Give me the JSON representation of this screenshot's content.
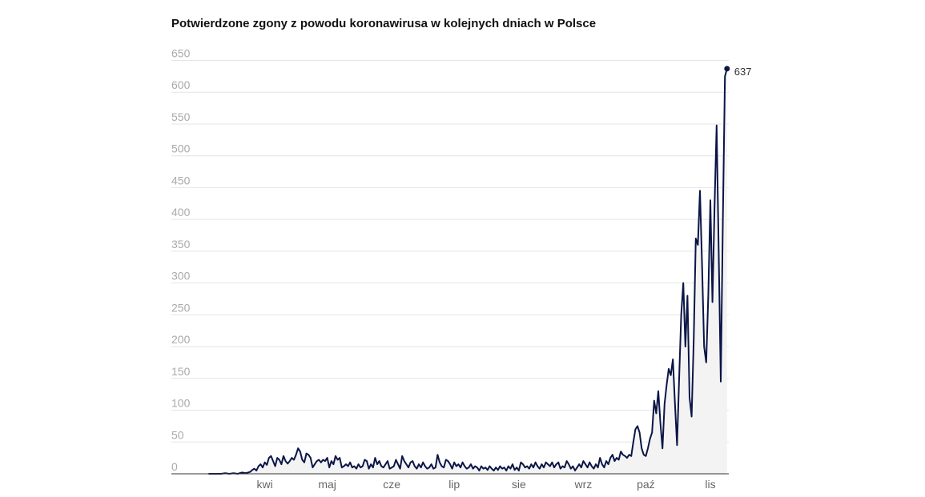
{
  "chart_data": {
    "type": "line",
    "title": "Potwierdzone zgony z powodu koronawirusa w kolejnych dniach w Polsce",
    "xlabel": "",
    "ylabel": "",
    "ylim": [
      0,
      650
    ],
    "yticks": [
      0,
      50,
      100,
      150,
      200,
      250,
      300,
      350,
      400,
      450,
      500,
      550,
      600,
      650
    ],
    "xtick_labels": [
      {
        "label": "kwi",
        "day": 31
      },
      {
        "label": "maj",
        "day": 61
      },
      {
        "label": "cze",
        "day": 92
      },
      {
        "label": "lip",
        "day": 122
      },
      {
        "label": "sie",
        "day": 153
      },
      {
        "label": "wrz",
        "day": 184
      },
      {
        "label": "paź",
        "day": 214
      },
      {
        "label": "lis",
        "day": 245
      }
    ],
    "end_label": "637",
    "grid": true,
    "line_color": "#0b1546",
    "fill_color": "#f3f3f3",
    "series": [
      {
        "points": [
          [
            4,
            0
          ],
          [
            10,
            0
          ],
          [
            12,
            1
          ],
          [
            14,
            0
          ],
          [
            16,
            1
          ],
          [
            18,
            0
          ],
          [
            20,
            2
          ],
          [
            22,
            1
          ],
          [
            24,
            3
          ],
          [
            25,
            6
          ],
          [
            26,
            8
          ],
          [
            27,
            5
          ],
          [
            28,
            12
          ],
          [
            29,
            15
          ],
          [
            30,
            10
          ],
          [
            31,
            18
          ],
          [
            32,
            14
          ],
          [
            33,
            25
          ],
          [
            34,
            28
          ],
          [
            35,
            20
          ],
          [
            36,
            12
          ],
          [
            37,
            25
          ],
          [
            38,
            22
          ],
          [
            39,
            15
          ],
          [
            40,
            28
          ],
          [
            41,
            20
          ],
          [
            42,
            16
          ],
          [
            43,
            20
          ],
          [
            44,
            25
          ],
          [
            45,
            22
          ],
          [
            46,
            30
          ],
          [
            47,
            40
          ],
          [
            48,
            35
          ],
          [
            49,
            22
          ],
          [
            50,
            18
          ],
          [
            51,
            32
          ],
          [
            52,
            30
          ],
          [
            53,
            25
          ],
          [
            54,
            10
          ],
          [
            55,
            15
          ],
          [
            56,
            20
          ],
          [
            57,
            22
          ],
          [
            58,
            18
          ],
          [
            59,
            22
          ],
          [
            60,
            20
          ],
          [
            61,
            25
          ],
          [
            62,
            10
          ],
          [
            63,
            20
          ],
          [
            64,
            15
          ],
          [
            65,
            28
          ],
          [
            66,
            22
          ],
          [
            67,
            25
          ],
          [
            68,
            10
          ],
          [
            69,
            12
          ],
          [
            70,
            15
          ],
          [
            71,
            12
          ],
          [
            72,
            18
          ],
          [
            73,
            10
          ],
          [
            74,
            12
          ],
          [
            75,
            8
          ],
          [
            76,
            15
          ],
          [
            77,
            10
          ],
          [
            78,
            12
          ],
          [
            79,
            22
          ],
          [
            80,
            20
          ],
          [
            81,
            8
          ],
          [
            82,
            15
          ],
          [
            83,
            10
          ],
          [
            84,
            25
          ],
          [
            85,
            15
          ],
          [
            86,
            20
          ],
          [
            87,
            12
          ],
          [
            88,
            10
          ],
          [
            89,
            15
          ],
          [
            90,
            20
          ],
          [
            91,
            8
          ],
          [
            92,
            10
          ],
          [
            93,
            12
          ],
          [
            94,
            22
          ],
          [
            95,
            15
          ],
          [
            96,
            8
          ],
          [
            97,
            28
          ],
          [
            98,
            20
          ],
          [
            99,
            15
          ],
          [
            100,
            10
          ],
          [
            101,
            18
          ],
          [
            102,
            20
          ],
          [
            103,
            12
          ],
          [
            104,
            8
          ],
          [
            105,
            15
          ],
          [
            106,
            10
          ],
          [
            107,
            18
          ],
          [
            108,
            12
          ],
          [
            109,
            8
          ],
          [
            110,
            10
          ],
          [
            111,
            15
          ],
          [
            112,
            8
          ],
          [
            113,
            10
          ],
          [
            114,
            30
          ],
          [
            115,
            18
          ],
          [
            116,
            12
          ],
          [
            117,
            10
          ],
          [
            118,
            22
          ],
          [
            119,
            20
          ],
          [
            120,
            15
          ],
          [
            121,
            8
          ],
          [
            122,
            18
          ],
          [
            123,
            12
          ],
          [
            124,
            15
          ],
          [
            125,
            10
          ],
          [
            126,
            18
          ],
          [
            127,
            12
          ],
          [
            128,
            8
          ],
          [
            129,
            10
          ],
          [
            130,
            15
          ],
          [
            131,
            8
          ],
          [
            132,
            12
          ],
          [
            133,
            10
          ],
          [
            134,
            5
          ],
          [
            135,
            12
          ],
          [
            136,
            8
          ],
          [
            137,
            10
          ],
          [
            138,
            6
          ],
          [
            139,
            12
          ],
          [
            140,
            8
          ],
          [
            141,
            5
          ],
          [
            142,
            10
          ],
          [
            143,
            6
          ],
          [
            144,
            12
          ],
          [
            145,
            8
          ],
          [
            146,
            10
          ],
          [
            147,
            5
          ],
          [
            148,
            12
          ],
          [
            149,
            8
          ],
          [
            150,
            15
          ],
          [
            151,
            6
          ],
          [
            152,
            10
          ],
          [
            153,
            5
          ],
          [
            154,
            18
          ],
          [
            155,
            15
          ],
          [
            156,
            10
          ],
          [
            157,
            12
          ],
          [
            158,
            8
          ],
          [
            159,
            15
          ],
          [
            160,
            10
          ],
          [
            161,
            18
          ],
          [
            162,
            12
          ],
          [
            163,
            8
          ],
          [
            164,
            15
          ],
          [
            165,
            10
          ],
          [
            166,
            18
          ],
          [
            167,
            15
          ],
          [
            168,
            12
          ],
          [
            169,
            18
          ],
          [
            170,
            10
          ],
          [
            171,
            15
          ],
          [
            172,
            18
          ],
          [
            173,
            8
          ],
          [
            174,
            12
          ],
          [
            175,
            10
          ],
          [
            176,
            20
          ],
          [
            177,
            15
          ],
          [
            178,
            8
          ],
          [
            179,
            12
          ],
          [
            180,
            5
          ],
          [
            181,
            10
          ],
          [
            182,
            15
          ],
          [
            183,
            10
          ],
          [
            184,
            20
          ],
          [
            185,
            15
          ],
          [
            186,
            10
          ],
          [
            187,
            18
          ],
          [
            188,
            12
          ],
          [
            189,
            8
          ],
          [
            190,
            15
          ],
          [
            191,
            10
          ],
          [
            192,
            25
          ],
          [
            193,
            15
          ],
          [
            194,
            10
          ],
          [
            195,
            20
          ],
          [
            196,
            15
          ],
          [
            197,
            25
          ],
          [
            198,
            30
          ],
          [
            199,
            20
          ],
          [
            200,
            25
          ],
          [
            201,
            22
          ],
          [
            202,
            35
          ],
          [
            203,
            30
          ],
          [
            204,
            28
          ],
          [
            205,
            25
          ],
          [
            206,
            30
          ],
          [
            207,
            28
          ],
          [
            208,
            50
          ],
          [
            209,
            70
          ],
          [
            210,
            75
          ],
          [
            211,
            65
          ],
          [
            212,
            40
          ],
          [
            213,
            30
          ],
          [
            214,
            28
          ],
          [
            215,
            40
          ],
          [
            216,
            55
          ],
          [
            217,
            65
          ],
          [
            218,
            115
          ],
          [
            219,
            95
          ],
          [
            220,
            130
          ],
          [
            221,
            80
          ],
          [
            222,
            40
          ],
          [
            223,
            110
          ],
          [
            224,
            140
          ],
          [
            225,
            165
          ],
          [
            226,
            155
          ],
          [
            227,
            180
          ],
          [
            228,
            110
          ],
          [
            229,
            45
          ],
          [
            230,
            150
          ],
          [
            231,
            250
          ],
          [
            232,
            300
          ],
          [
            233,
            200
          ],
          [
            234,
            280
          ],
          [
            235,
            120
          ],
          [
            236,
            90
          ],
          [
            237,
            210
          ],
          [
            238,
            370
          ],
          [
            239,
            360
          ],
          [
            240,
            445
          ],
          [
            241,
            330
          ],
          [
            242,
            200
          ],
          [
            243,
            175
          ],
          [
            244,
            280
          ],
          [
            245,
            430
          ],
          [
            246,
            270
          ],
          [
            247,
            420
          ],
          [
            248,
            548
          ],
          [
            249,
            350
          ],
          [
            250,
            145
          ],
          [
            251,
            400
          ],
          [
            252,
            625
          ],
          [
            253,
            637
          ]
        ]
      }
    ]
  }
}
